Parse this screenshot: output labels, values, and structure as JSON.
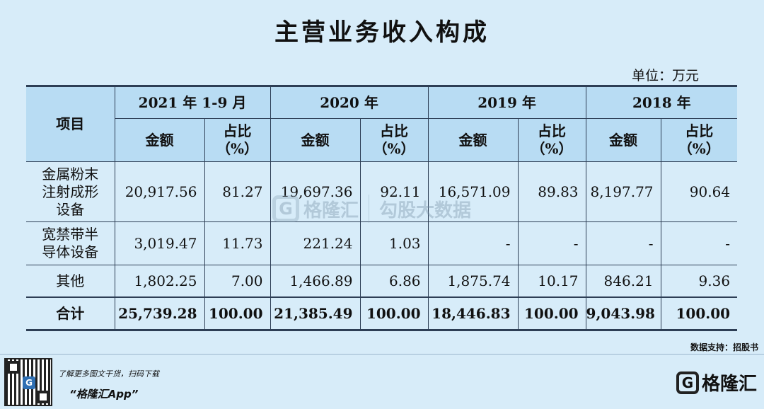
{
  "header": {
    "title": "主营业务收入构成",
    "unit": "单位：万元"
  },
  "table": {
    "item_header": "项目",
    "amount_header": "金额",
    "ratio_header": "占比",
    "ratio_unit": "（%）",
    "years": [
      "2021 年 1-9 月",
      "2020 年",
      "2019 年",
      "2018 年"
    ]
  },
  "chart_data": {
    "type": "table",
    "title": "主营业务收入构成",
    "unit": "单位：万元",
    "columns": [
      "项目",
      "2021 年 1-9 月 金额",
      "2021 年 1-9 月 占比（%）",
      "2020 年 金额",
      "2020 年 占比（%）",
      "2019 年 金额",
      "2019 年 占比（%）",
      "2018 年 金额",
      "2018 年 占比（%）"
    ],
    "rows": [
      {
        "name": "金属粉末注射成形设备",
        "name_lines": [
          "金属粉末",
          "注射成形",
          "设备"
        ],
        "values": [
          "20,917.56",
          "81.27",
          "19,697.36",
          "92.11",
          "16,571.09",
          "89.83",
          "8,197.77",
          "90.64"
        ]
      },
      {
        "name": "宽禁带半导体设备",
        "name_lines": [
          "宽禁带半",
          "导体设备"
        ],
        "values": [
          "3,019.47",
          "11.73",
          "221.24",
          "1.03",
          "-",
          "-",
          "-",
          "-"
        ]
      },
      {
        "name": "其他",
        "name_lines": [
          "其他"
        ],
        "values": [
          "1,802.25",
          "7.00",
          "1,466.89",
          "6.86",
          "1,875.74",
          "10.17",
          "846.21",
          "9.36"
        ]
      },
      {
        "name": "合计",
        "name_lines": [
          "合计"
        ],
        "values": [
          "25,739.28",
          "100.00",
          "21,385.49",
          "100.00",
          "18,446.83",
          "100.00",
          "9,043.98",
          "100.00"
        ]
      }
    ]
  },
  "watermark": {
    "logo_letter": "G",
    "brand": "格隆汇",
    "partner": "勾股大数据"
  },
  "footer": {
    "source": "数据支持：招股书",
    "promo_line1": "了解更多图文干货，扫码下载",
    "promo_line2": "“格隆汇App”",
    "qr_letter": "G",
    "brand_logo_letter": "G",
    "brand_name": "格隆汇"
  }
}
